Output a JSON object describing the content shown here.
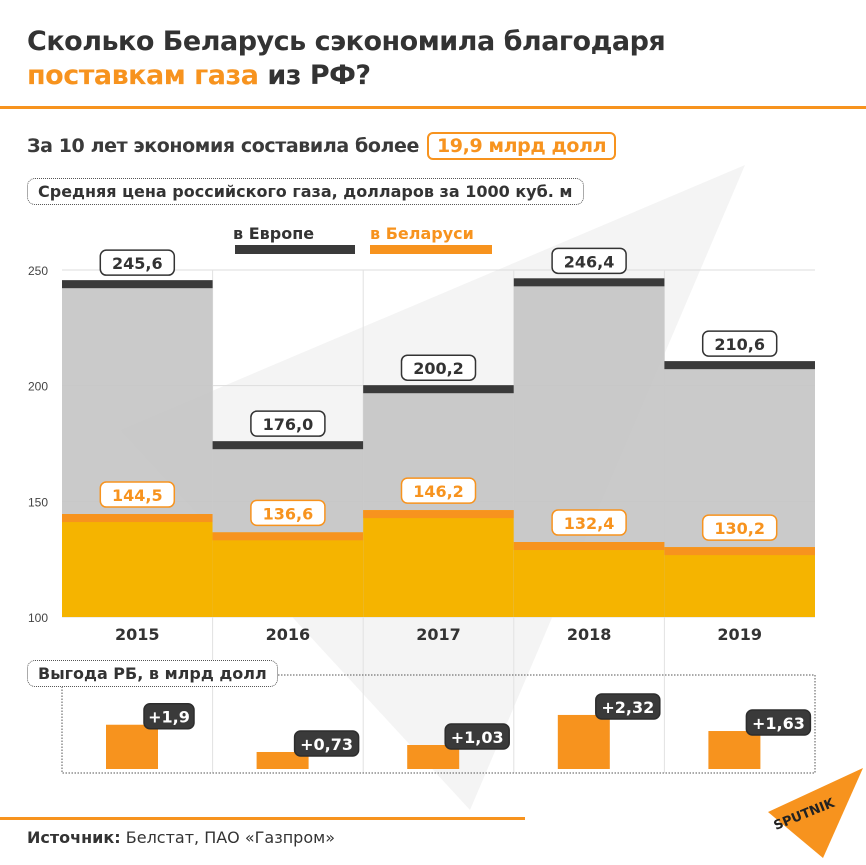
{
  "title": {
    "line1": "Сколько Беларусь сэкономила благодаря",
    "line2_highlight": "поставкам газа",
    "line2_rest": " из РФ?"
  },
  "subtitle": {
    "text": "За 10 лет экономия составила более",
    "badge": "19,9  млрд долл"
  },
  "colors": {
    "accent": "#f7931e",
    "europe": "#3a3a3a",
    "belarus": "#f7931e",
    "belarus_fill": "#f5b400",
    "europe_fill": "#c4c4c4"
  },
  "chart_data": [
    {
      "type": "bar",
      "title": "Средняя цена российского газа, долларов за 1000 куб. м",
      "categories": [
        "2015",
        "2016",
        "2017",
        "2018",
        "2019"
      ],
      "series": [
        {
          "name": "в Европе",
          "values": [
            245.6,
            176.0,
            200.2,
            246.4,
            210.6
          ],
          "labels": [
            "245,6",
            "176,0",
            "200,2",
            "246,4",
            "210,6"
          ]
        },
        {
          "name": "в Беларуси",
          "values": [
            144.5,
            136.6,
            146.2,
            132.4,
            130.2
          ],
          "labels": [
            "144,5",
            "136,6",
            "146,2",
            "132,4",
            "130,2"
          ]
        }
      ],
      "ylim": [
        100,
        250
      ],
      "yticks": [
        "100",
        "150",
        "200",
        "250"
      ],
      "legend": "top"
    },
    {
      "type": "bar",
      "title": "Выгода РБ, в млрд долл",
      "categories": [
        "2015",
        "2016",
        "2017",
        "2018",
        "2019"
      ],
      "values": [
        1.9,
        0.73,
        1.03,
        2.32,
        1.63
      ],
      "labels": [
        "+1,9",
        "+0,73",
        "+1,03",
        "+2,32",
        "+1,63"
      ]
    }
  ],
  "source": {
    "label": "Источник:",
    "text": " Белстат, ПАО «Газпром»"
  },
  "logo": {
    "text": "SPUTNIK",
    "icon": "sputnik-logo"
  }
}
